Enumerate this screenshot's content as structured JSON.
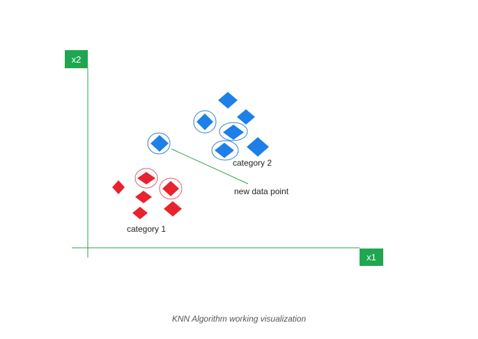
{
  "axes": {
    "x_label": "x1",
    "y_label": "x2",
    "axis_color": "#1fa750"
  },
  "categories": [
    {
      "name": "category 1",
      "color": "#e8232d"
    },
    {
      "name": "category 2",
      "color": "#1e7fe8"
    }
  ],
  "new_point": {
    "label": "new data point",
    "color": "#1e7fe8",
    "ring_color": "#2a7fd4"
  },
  "highlight_ring_colors": {
    "category 1": "#e05a66",
    "category 2": "#2a7fd4"
  },
  "caption": "KNN Algorithm working visualization"
}
